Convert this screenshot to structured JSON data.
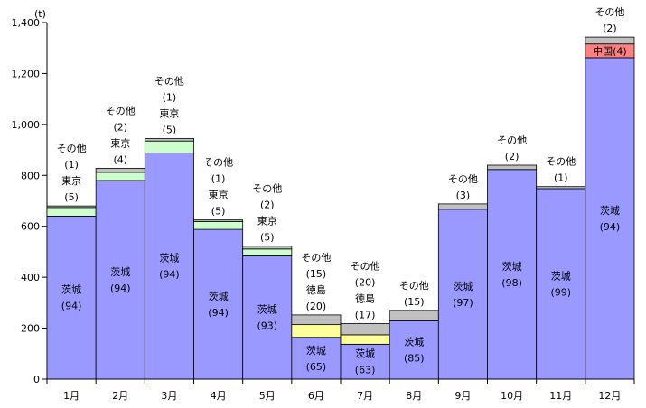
{
  "chart_data": {
    "type": "bar",
    "stacked": true,
    "unit": "(t)",
    "ylim": [
      0,
      1400
    ],
    "yticks": [
      "0",
      "200",
      "400",
      "600",
      "800",
      "1,000",
      "1,200",
      "1,400"
    ],
    "ytick_values": [
      0,
      200,
      400,
      600,
      800,
      1000,
      1200,
      1400
    ],
    "categories": [
      "1月",
      "2月",
      "3月",
      "4月",
      "5月",
      "6月",
      "7月",
      "8月",
      "9月",
      "10月",
      "11月",
      "12月"
    ],
    "colors": {
      "茨城": "#9999ff",
      "東京": "#ccffcc",
      "徳島": "#ffff99",
      "中国": "#ff8080",
      "その他": "#c0c0c0"
    },
    "bars": [
      {
        "month": "1月",
        "total": 680,
        "segments": [
          {
            "name": "茨城",
            "value": 640,
            "label": [
              "茨城",
              "(94)"
            ]
          },
          {
            "name": "東京",
            "value": 34
          },
          {
            "name": "その他",
            "value": 6
          }
        ],
        "above": [
          "その他",
          "(1)",
          "東京",
          "(5)"
        ]
      },
      {
        "month": "2月",
        "total": 828,
        "segments": [
          {
            "name": "茨城",
            "value": 780,
            "label": [
              "茨城",
              "(94)"
            ]
          },
          {
            "name": "東京",
            "value": 32
          },
          {
            "name": "その他",
            "value": 16
          }
        ],
        "above": [
          "その他",
          "(2)",
          "東京",
          "(4)"
        ]
      },
      {
        "month": "3月",
        "total": 945,
        "segments": [
          {
            "name": "茨城",
            "value": 888,
            "label": [
              "茨城",
              "(94)"
            ]
          },
          {
            "name": "東京",
            "value": 47
          },
          {
            "name": "その他",
            "value": 10
          }
        ],
        "above": [
          "その他",
          "(1)",
          "東京",
          "(5)"
        ]
      },
      {
        "month": "4月",
        "total": 625,
        "segments": [
          {
            "name": "茨城",
            "value": 588,
            "label": [
              "茨城",
              "(94)"
            ]
          },
          {
            "name": "東京",
            "value": 31
          },
          {
            "name": "その他",
            "value": 6
          }
        ],
        "above": [
          "その他",
          "(1)",
          "東京",
          "(5)"
        ]
      },
      {
        "month": "5月",
        "total": 522,
        "segments": [
          {
            "name": "茨城",
            "value": 484,
            "label": [
              "茨城",
              "(93)"
            ]
          },
          {
            "name": "東京",
            "value": 27
          },
          {
            "name": "その他",
            "value": 11
          }
        ],
        "above": [
          "その他",
          "(2)",
          "東京",
          "(5)"
        ]
      },
      {
        "month": "6月",
        "total": 252,
        "segments": [
          {
            "name": "茨城",
            "value": 164,
            "label": [
              "茨城",
              "(65)"
            ]
          },
          {
            "name": "徳島",
            "value": 50
          },
          {
            "name": "その他",
            "value": 38
          }
        ],
        "above": [
          "その他",
          "(15)",
          "徳島",
          "(20)"
        ]
      },
      {
        "month": "7月",
        "total": 218,
        "segments": [
          {
            "name": "茨城",
            "value": 137,
            "label": [
              "茨城",
              "(63)"
            ]
          },
          {
            "name": "徳島",
            "value": 37
          },
          {
            "name": "その他",
            "value": 44
          }
        ],
        "above": [
          "その他",
          "(20)",
          "徳島",
          "(17)"
        ]
      },
      {
        "month": "8月",
        "total": 270,
        "segments": [
          {
            "name": "茨城",
            "value": 229,
            "label": [
              "茨城",
              "(85)"
            ]
          },
          {
            "name": "その他",
            "value": 41
          }
        ],
        "above": [
          "その他",
          "(15)"
        ]
      },
      {
        "month": "9月",
        "total": 688,
        "segments": [
          {
            "name": "茨城",
            "value": 667,
            "label": [
              "茨城",
              "(97)"
            ]
          },
          {
            "name": "その他",
            "value": 21
          }
        ],
        "above": [
          "その他",
          "(3)"
        ]
      },
      {
        "month": "10月",
        "total": 840,
        "segments": [
          {
            "name": "茨城",
            "value": 823,
            "label": [
              "茨城",
              "(98)"
            ]
          },
          {
            "name": "その他",
            "value": 17
          }
        ],
        "above": [
          "その他",
          "(2)"
        ]
      },
      {
        "month": "11月",
        "total": 756,
        "segments": [
          {
            "name": "茨城",
            "value": 748,
            "label": [
              "茨城",
              "(99)"
            ]
          },
          {
            "name": "その他",
            "value": 8
          }
        ],
        "above": [
          "その他",
          "(1)"
        ]
      },
      {
        "month": "12月",
        "total": 1343,
        "segments": [
          {
            "name": "茨城",
            "value": 1262,
            "label": [
              "茨城",
              "(94)"
            ]
          },
          {
            "name": "中国",
            "value": 54,
            "label": [
              "中国(4)"
            ]
          },
          {
            "name": "その他",
            "value": 27
          }
        ],
        "above": [
          "その他",
          "(2)"
        ]
      }
    ]
  }
}
